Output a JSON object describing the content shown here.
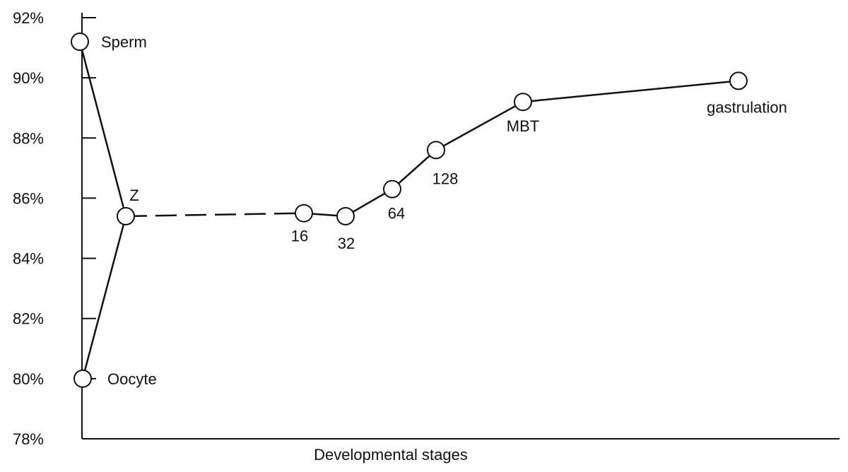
{
  "chart_data": {
    "type": "line",
    "xlabel": "Developmental stages",
    "ylabel": "",
    "ylim": [
      78,
      92
    ],
    "y_ticks": [
      {
        "value": 92,
        "label": "92%"
      },
      {
        "value": 90,
        "label": "90%"
      },
      {
        "value": 88,
        "label": "88%"
      },
      {
        "value": 86,
        "label": "86%"
      },
      {
        "value": 84,
        "label": "84%"
      },
      {
        "value": 82,
        "label": "82%"
      },
      {
        "value": 80,
        "label": "80%"
      },
      {
        "value": 78,
        "label": "78%"
      }
    ],
    "points": [
      {
        "stage": "Sperm",
        "value": 91.2
      },
      {
        "stage": "Oocyte",
        "value": 80.0
      },
      {
        "stage": "Z",
        "value": 85.4
      },
      {
        "stage": "16",
        "value": 85.5
      },
      {
        "stage": "32",
        "value": 85.4
      },
      {
        "stage": "64",
        "value": 86.3
      },
      {
        "stage": "128",
        "value": 87.6
      },
      {
        "stage": "MBT",
        "value": 89.2
      },
      {
        "stage": "gastrulation",
        "value": 89.9
      }
    ],
    "segments": [
      {
        "from": "Sperm",
        "to": "Z",
        "style": "solid"
      },
      {
        "from": "Oocyte",
        "to": "Z",
        "style": "solid"
      },
      {
        "from": "Z",
        "to": "16",
        "style": "dashed"
      },
      {
        "from": "16",
        "to": "32",
        "style": "solid"
      },
      {
        "from": "32",
        "to": "64",
        "style": "solid"
      },
      {
        "from": "64",
        "to": "128",
        "style": "solid"
      },
      {
        "from": "128",
        "to": "MBT",
        "style": "solid"
      },
      {
        "from": "MBT",
        "to": "gastrulation",
        "style": "solid"
      }
    ],
    "grid": false,
    "legend": "none"
  }
}
